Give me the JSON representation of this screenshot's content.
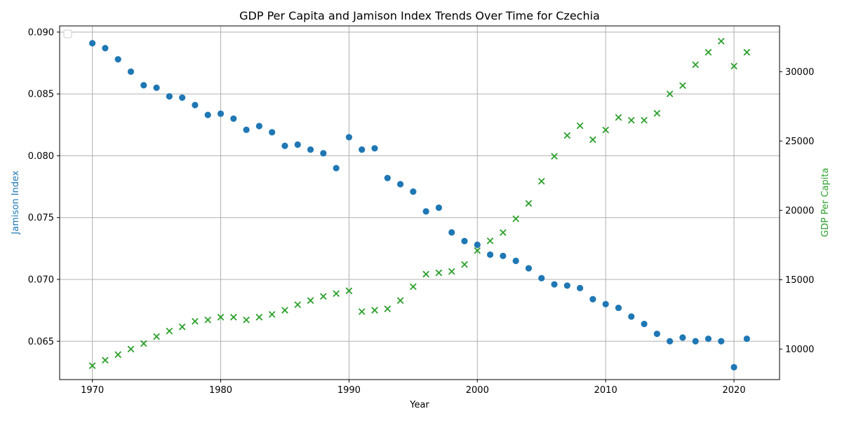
{
  "chart_data": {
    "type": "scatter",
    "title": "GDP Per Capita and Jamison Index Trends Over Time for Czechia",
    "xlabel": "Year",
    "ylabel_left": "Jamison Index",
    "ylabel_right": "GDP Per Capita",
    "xlim": [
      1967.45,
      2023.55
    ],
    "ylim_left": [
      0.0619,
      0.0905
    ],
    "ylim_right": [
      7800,
      33300
    ],
    "x_ticks": [
      1970,
      1980,
      1990,
      2000,
      2010,
      2020
    ],
    "y_ticks_left": [
      0.065,
      0.07,
      0.075,
      0.08,
      0.085,
      0.09
    ],
    "y_ticks_left_labels": [
      "0.065",
      "0.070",
      "0.075",
      "0.080",
      "0.085",
      "0.090"
    ],
    "y_ticks_right": [
      10000,
      15000,
      20000,
      25000,
      30000
    ],
    "y_ticks_right_labels": [
      "10000",
      "15000",
      "20000",
      "25000",
      "30000"
    ],
    "grid": true,
    "legend_placement": "top-left",
    "colors": {
      "left_axis": "#1f77b4",
      "right_axis": "#2ca02c"
    },
    "series": [
      {
        "axis": "left",
        "marker": "circle",
        "color": "#1f77b4",
        "x": [
          1970,
          1971,
          1972,
          1973,
          1974,
          1975,
          1976,
          1977,
          1978,
          1979,
          1980,
          1981,
          1982,
          1983,
          1984,
          1985,
          1986,
          1987,
          1988,
          1989,
          1990,
          1991,
          1992,
          1993,
          1994,
          1995,
          1996,
          1997,
          1998,
          1999,
          2000,
          2001,
          2002,
          2003,
          2004,
          2005,
          2006,
          2007,
          2008,
          2009,
          2010,
          2011,
          2012,
          2013,
          2014,
          2015,
          2016,
          2017,
          2018,
          2019,
          2020,
          2021
        ],
        "values": [
          0.0891,
          0.0887,
          0.0878,
          0.0868,
          0.0857,
          0.0855,
          0.0848,
          0.0847,
          0.0841,
          0.0833,
          0.0834,
          0.083,
          0.0821,
          0.0824,
          0.0819,
          0.0808,
          0.0809,
          0.0805,
          0.0802,
          0.079,
          0.0815,
          0.0805,
          0.0806,
          0.0782,
          0.0777,
          0.0771,
          0.0755,
          0.0758,
          0.0738,
          0.0731,
          0.0728,
          0.072,
          0.0719,
          0.0715,
          0.0709,
          0.0701,
          0.0696,
          0.0695,
          0.0693,
          0.0684,
          0.068,
          0.0677,
          0.067,
          0.0664,
          0.0656,
          0.065,
          0.0653,
          0.065,
          0.0652,
          0.065,
          0.0629,
          0.0652
        ]
      },
      {
        "axis": "right",
        "marker": "x",
        "color": "#2ca02c",
        "x": [
          1970,
          1971,
          1972,
          1973,
          1974,
          1975,
          1976,
          1977,
          1978,
          1979,
          1980,
          1981,
          1982,
          1983,
          1984,
          1985,
          1986,
          1987,
          1988,
          1989,
          1990,
          1991,
          1992,
          1993,
          1994,
          1995,
          1996,
          1997,
          1998,
          1999,
          2000,
          2001,
          2002,
          2003,
          2004,
          2005,
          2006,
          2007,
          2008,
          2009,
          2010,
          2011,
          2012,
          2013,
          2014,
          2015,
          2016,
          2017,
          2018,
          2019,
          2020,
          2021
        ],
        "values": [
          8800,
          9200,
          9600,
          10000,
          10400,
          10900,
          11300,
          11600,
          12000,
          12100,
          12300,
          12300,
          12100,
          12300,
          12500,
          12800,
          13200,
          13500,
          13800,
          14000,
          14200,
          12700,
          12800,
          12900,
          13500,
          14500,
          15400,
          15500,
          15600,
          16100,
          17100,
          17800,
          18400,
          19400,
          20500,
          22100,
          23900,
          25400,
          26100,
          25100,
          25800,
          26700,
          26500,
          26500,
          27000,
          28400,
          29000,
          30500,
          31400,
          32200,
          30400,
          31400
        ]
      }
    ]
  }
}
